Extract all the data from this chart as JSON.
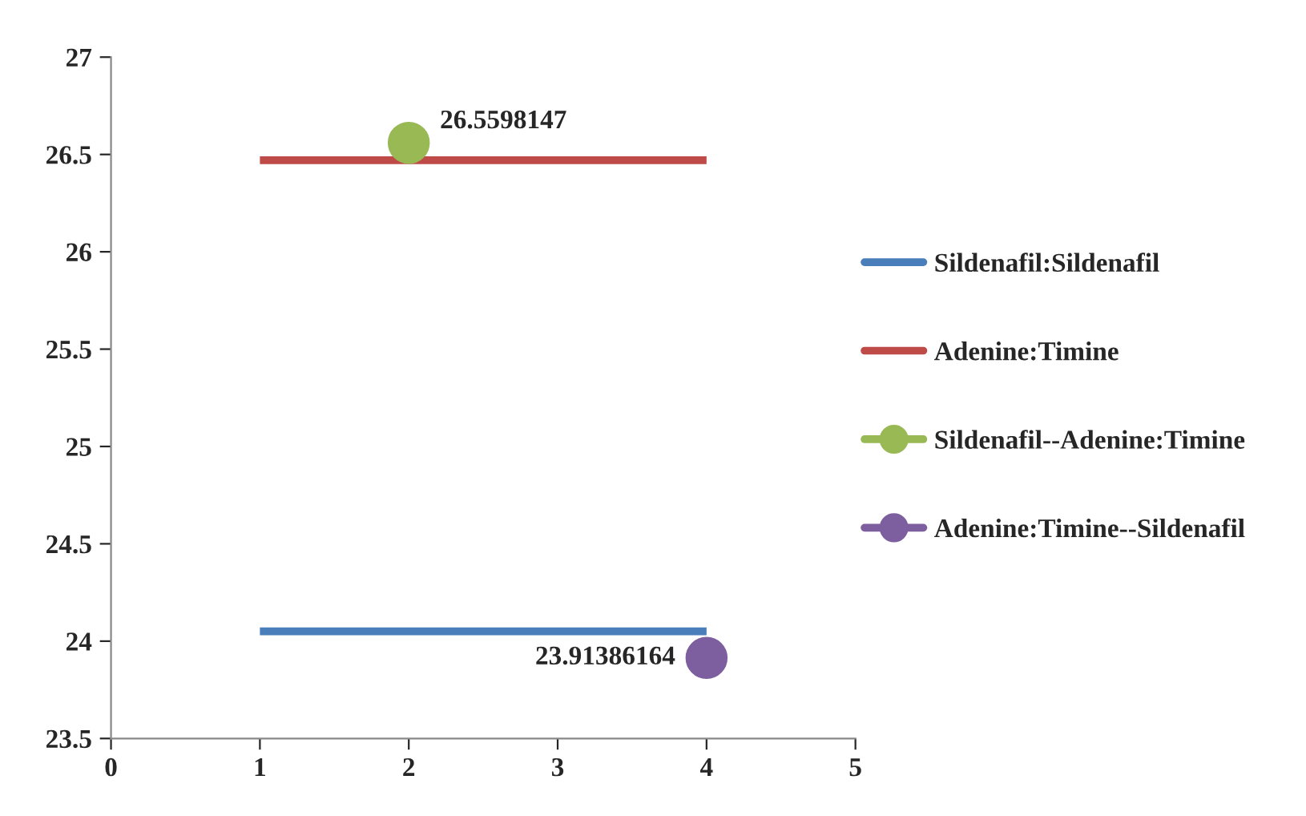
{
  "chart_data": {
    "type": "line",
    "series": [
      {
        "name": "Sildenafil:Sildenafil",
        "color": "#4a7ebb",
        "x": [
          1,
          4
        ],
        "values": [
          24.05,
          24.05
        ]
      },
      {
        "name": "Adenine:Timine",
        "color": "#be4b48",
        "x": [
          1,
          4
        ],
        "values": [
          26.47,
          26.47
        ]
      },
      {
        "name": "Sildenafil--Adenine:Timine",
        "color": "#98b954",
        "type": "scatter",
        "marker": "circle",
        "x": [
          2
        ],
        "values": [
          26.5598147
        ],
        "value_labels": [
          "26.5598147"
        ]
      },
      {
        "name": "Adenine:Timine--Sildenafil",
        "color": "#7d5fa0",
        "type": "scatter",
        "marker": "circle",
        "x": [
          4
        ],
        "values": [
          23.91386164
        ],
        "value_labels": [
          "23.91386164"
        ]
      }
    ],
    "xlim": [
      0,
      5
    ],
    "xticks": [
      0,
      1,
      2,
      3,
      4,
      5
    ],
    "ylim": [
      23.5,
      27
    ],
    "yticks": [
      23.5,
      24,
      24.5,
      25,
      25.5,
      26,
      26.5,
      27
    ],
    "grid": false,
    "legend": "right"
  }
}
